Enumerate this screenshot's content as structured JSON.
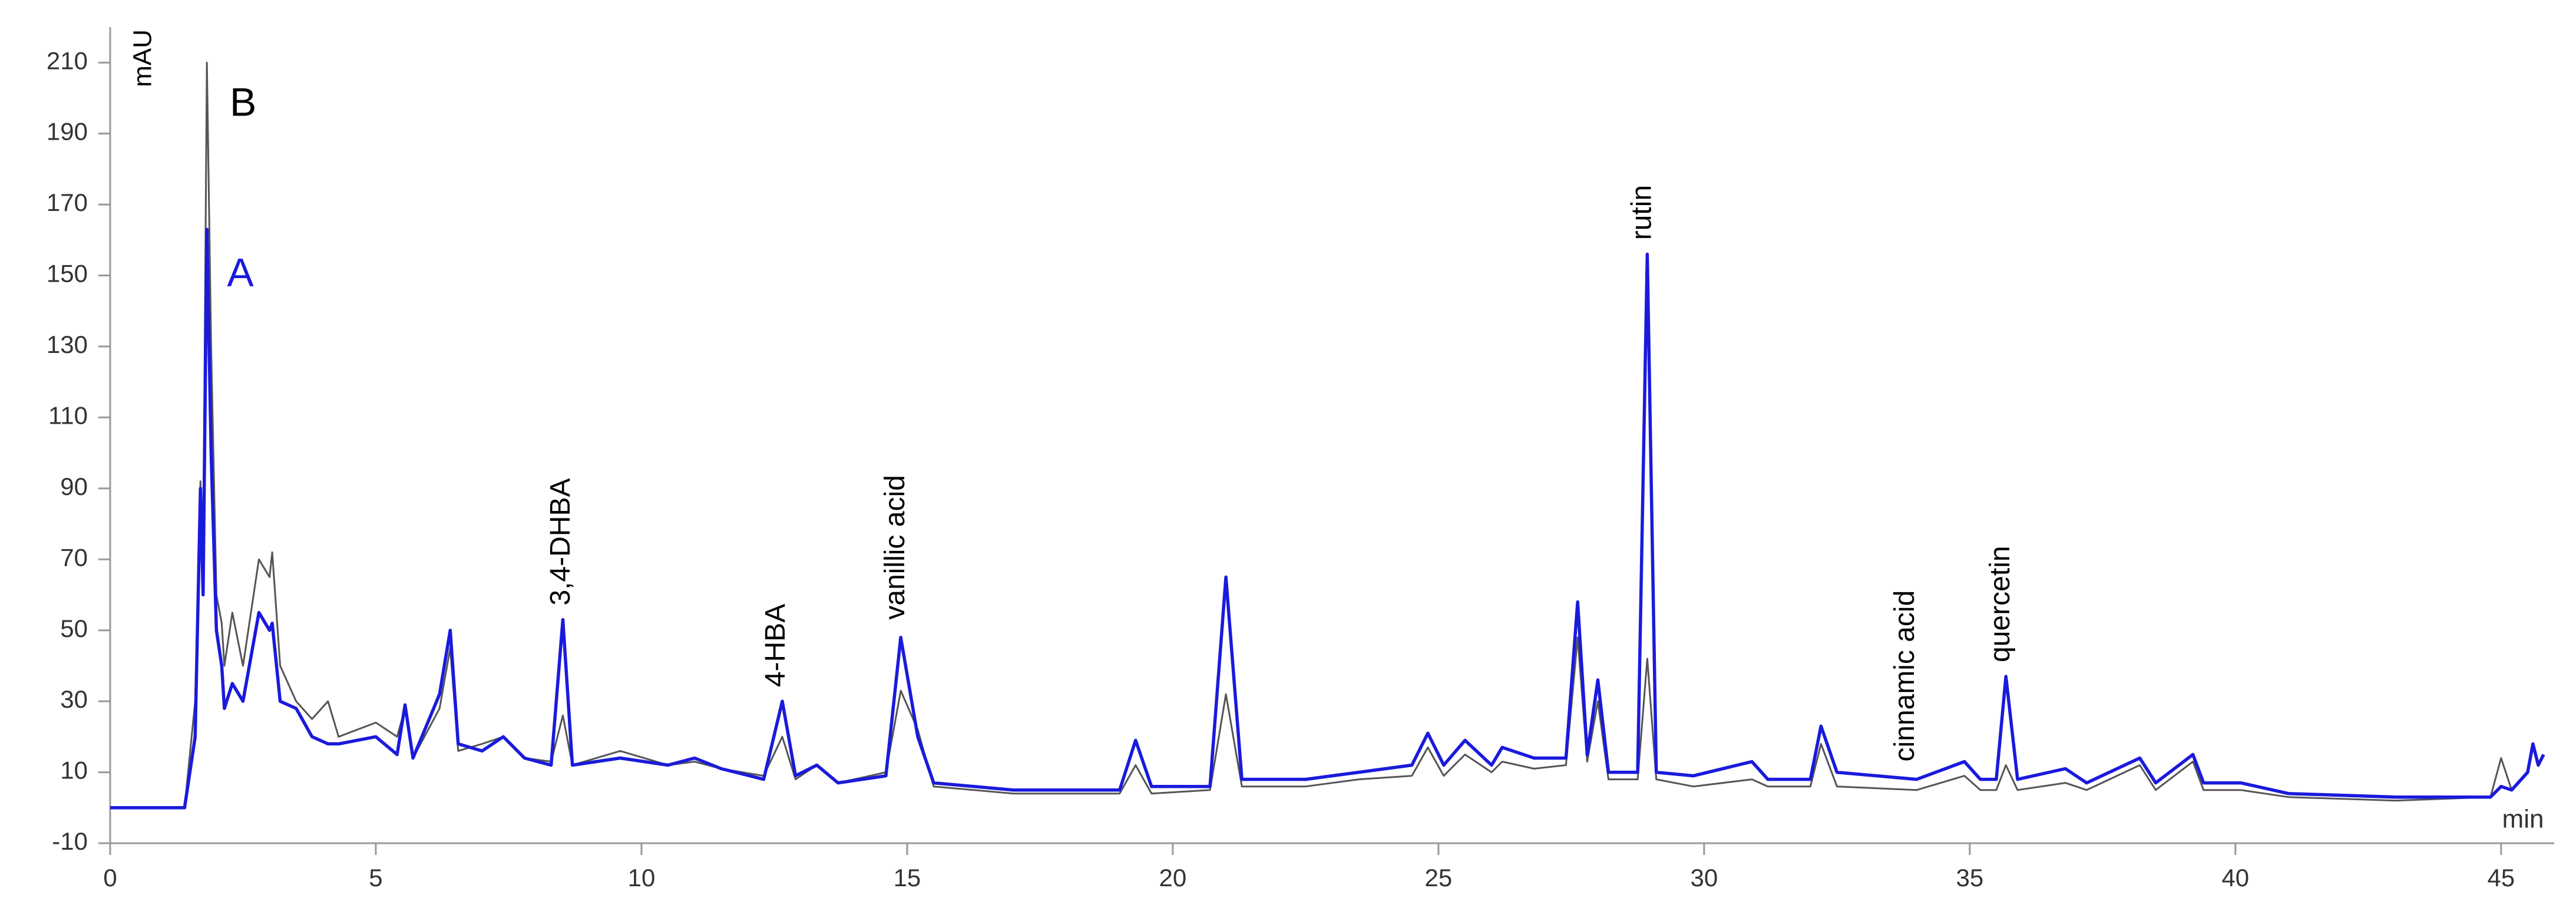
{
  "chart_data": {
    "type": "line",
    "x_label": "min",
    "y_label": "mAU",
    "annotations": [
      "3,4-DHBA",
      "4-HBA",
      "vanillic acid",
      "rutin",
      "cinnamic acid",
      "quercetin"
    ],
    "x": [
      0,
      1.4,
      1.6,
      1.7,
      1.75,
      1.82,
      1.9,
      2.0,
      2.1,
      2.15,
      2.3,
      2.5,
      2.8,
      3.0,
      3.05,
      3.2,
      3.5,
      3.8,
      4.1,
      4.3,
      5.0,
      5.4,
      5.55,
      5.7,
      6.2,
      6.4,
      6.55,
      7.0,
      7.4,
      7.8,
      8.3,
      8.52,
      8.7,
      9.6,
      10.5,
      11.0,
      11.5,
      12.3,
      12.65,
      12.9,
      13.3,
      13.7,
      14.6,
      14.88,
      15.2,
      15.5,
      17,
      19.0,
      19.3,
      19.6,
      20.7,
      21.0,
      21.3,
      22.5,
      23.5,
      24.5,
      24.8,
      25.1,
      25.5,
      26.0,
      26.2,
      26.8,
      27.4,
      27.62,
      27.8,
      28.0,
      28.2,
      28.75,
      28.93,
      29.1,
      29.8,
      30.9,
      31.2,
      32.0,
      32.2,
      32.5,
      34.0,
      34.9,
      35.2,
      35.5,
      35.68,
      35.9,
      36.8,
      37.2,
      38.2,
      38.5,
      39.2,
      39.4,
      40.1,
      41,
      43,
      44.8,
      45.0,
      45.2,
      45.5,
      45.6,
      45.7,
      45.8
    ],
    "series": [
      {
        "name": "B",
        "color": "#555555",
        "label_color": "#000000",
        "values": [
          0,
          0,
          30,
          92,
          70,
          210,
          130,
          60,
          52,
          40,
          55,
          40,
          70,
          65,
          72,
          40,
          30,
          25,
          30,
          20,
          24,
          20,
          28,
          14,
          28,
          45,
          16,
          18,
          20,
          14,
          13,
          26,
          12,
          16,
          12,
          13,
          11,
          9,
          20,
          8,
          12,
          7,
          10,
          33,
          22,
          6,
          4,
          4,
          12,
          4,
          5,
          32,
          6,
          6,
          8,
          9,
          17,
          9,
          15,
          10,
          13,
          11,
          12,
          48,
          13,
          30,
          8,
          8,
          42,
          8,
          6,
          8,
          6,
          6,
          18,
          6,
          5,
          9,
          5,
          5,
          12,
          5,
          7,
          5,
          12,
          5,
          13,
          5,
          5,
          3,
          2,
          3,
          14,
          5,
          10,
          17,
          12,
          15
        ]
      },
      {
        "name": "A",
        "color": "#1a1adc",
        "label_color": "#1a1adc",
        "values": [
          0,
          0,
          20,
          90,
          60,
          163,
          100,
          50,
          40,
          28,
          35,
          30,
          55,
          50,
          52,
          30,
          28,
          20,
          18,
          18,
          20,
          15,
          29,
          14,
          32,
          50,
          18,
          16,
          20,
          14,
          12,
          53,
          12,
          14,
          12,
          14,
          11,
          8,
          30,
          9,
          12,
          7,
          9,
          48,
          20,
          7,
          5,
          5,
          19,
          6,
          6,
          65,
          8,
          8,
          10,
          12,
          21,
          12,
          19,
          12,
          17,
          14,
          14,
          58,
          15,
          36,
          10,
          10,
          156,
          10,
          9,
          13,
          8,
          8,
          23,
          10,
          8,
          13,
          8,
          8,
          37,
          8,
          11,
          7,
          14,
          7,
          15,
          7,
          7,
          4,
          3,
          3,
          6,
          5,
          10,
          18,
          12,
          15
        ]
      }
    ],
    "xlim": [
      0,
      46
    ],
    "ylim": [
      -10,
      220
    ],
    "xticks": [
      0,
      5,
      10,
      15,
      20,
      25,
      30,
      35,
      40,
      45
    ],
    "yticks": [
      -10,
      10,
      30,
      50,
      70,
      90,
      110,
      130,
      150,
      170,
      190,
      210
    ],
    "grid": false
  }
}
